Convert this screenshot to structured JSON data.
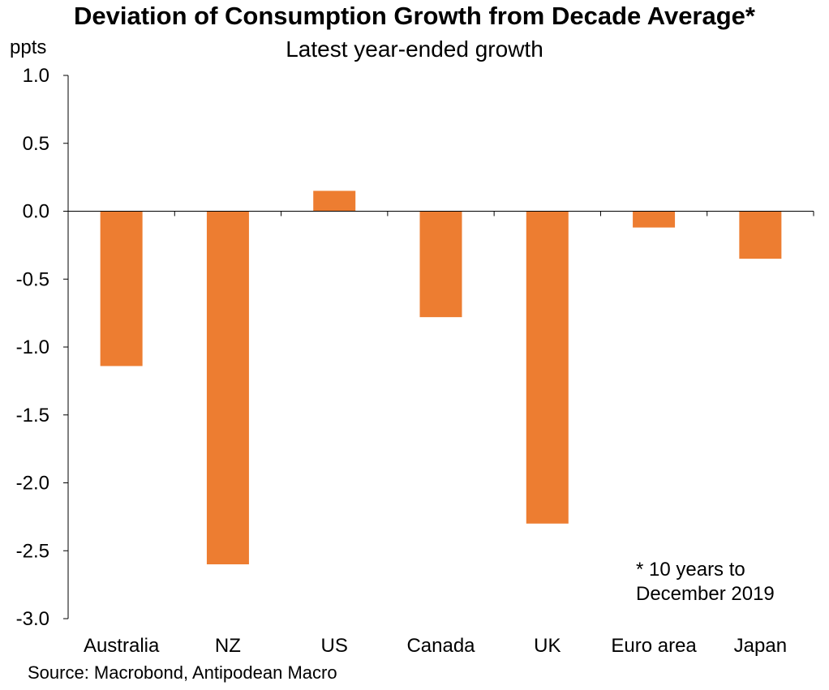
{
  "chart_data": {
    "type": "bar",
    "title": "Deviation of Consumption Growth from Decade Average*",
    "subtitle": "Latest year-ended growth",
    "ylabel": "ppts",
    "categories": [
      "Australia",
      "NZ",
      "US",
      "Canada",
      "UK",
      "Euro area",
      "Japan"
    ],
    "values": [
      -1.14,
      -2.6,
      0.15,
      -0.78,
      -2.3,
      -0.12,
      -0.35
    ],
    "ylim": [
      -3.0,
      1.0
    ],
    "yticks": [
      "1.0",
      "0.5",
      "0.0",
      "-0.5",
      "-1.0",
      "-1.5",
      "-2.0",
      "-2.5",
      "-3.0"
    ],
    "grid": false,
    "bar_color": "#ED7D31",
    "note_line1": "* 10 years to",
    "note_line2": "December 2019",
    "source": "Source: Macrobond, Antipodean Macro"
  }
}
